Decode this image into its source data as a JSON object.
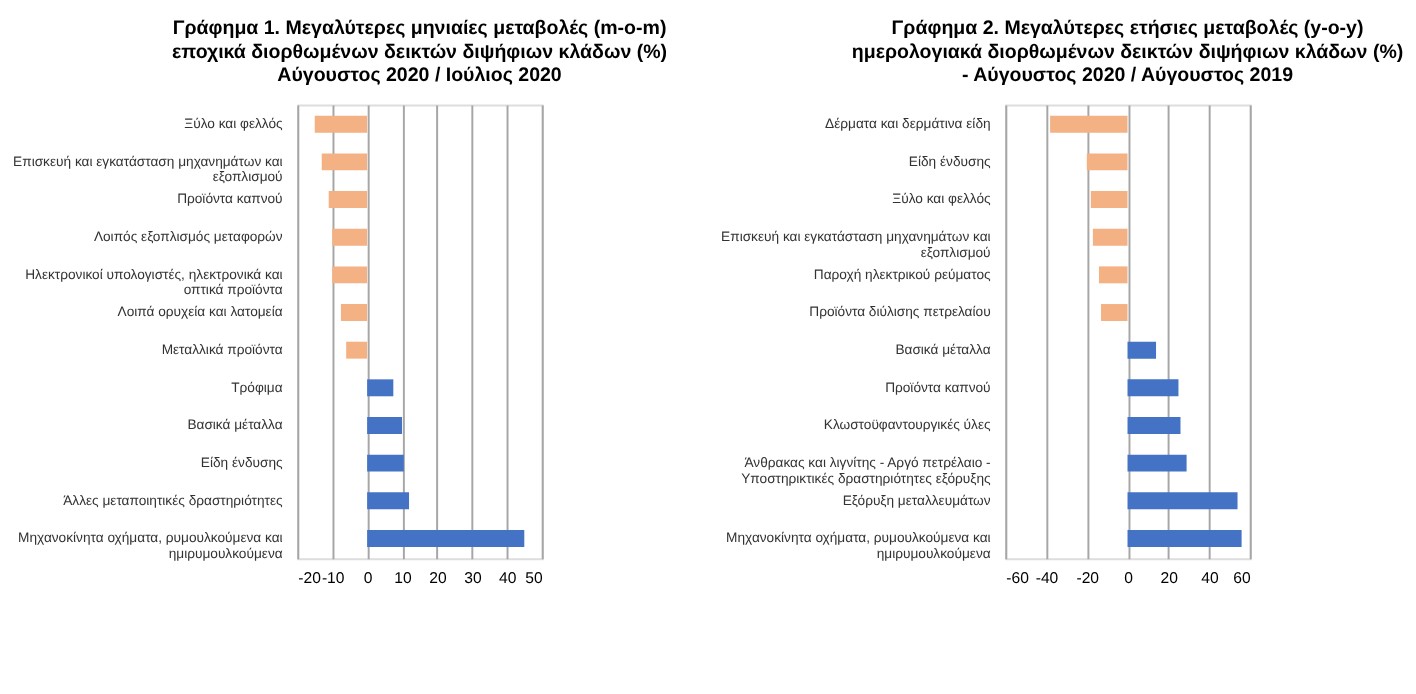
{
  "chart_data": [
    {
      "type": "bar",
      "orientation": "horizontal",
      "title": "Γράφημα 1. Μεγαλύτερες μηνιαίες μεταβολές (m-o-m) εποχικά διορθωμένων δεικτών διψήφιων κλάδων (%) Αύγουστος 2020 / Ιούλιος 2020",
      "categories": [
        "Ξύλο και φελλός",
        "Επισκευή και εγκατάσταση μηχανημάτων και εξοπλισμού",
        "Προϊόντα καπνού",
        "Λοιπός εξοπλισμός μεταφορών",
        "Ηλεκτρονικοί υπολογιστές, ηλεκτρονικά και οπτικά προϊόντα",
        "Λοιπά ορυχεία και λατομεία",
        "Μεταλλικά προϊόντα",
        "Τρόφιμα",
        "Βασικά μέταλλα",
        "Είδη ένδυσης",
        "Άλλες μεταποιητικές δραστηριότητες",
        "Μηχανοκίνητα οχήματα, ρυμουλκούμενα και ημιρυμουλκούμενα"
      ],
      "values": [
        -15,
        -13,
        -11,
        -10,
        -10,
        -7.5,
        -6,
        7.5,
        10,
        10.5,
        12,
        45
      ],
      "colors": [
        "#f4b183",
        "#f4b183",
        "#f4b183",
        "#f4b183",
        "#f4b183",
        "#f4b183",
        "#f4b183",
        "#4472c4",
        "#4472c4",
        "#4472c4",
        "#4472c4",
        "#4472c4"
      ],
      "xlim": [
        -20,
        50
      ],
      "xticks": [
        -20,
        -10,
        0,
        10,
        20,
        30,
        40,
        50
      ],
      "grid": "x"
    },
    {
      "type": "bar",
      "orientation": "horizontal",
      "title": "Γράφημα 2. Μεγαλύτερες ετήσιες μεταβολές (y-o-y) ημερολογιακά διορθωμένων δεικτών διψήφιων κλάδων (%) - Αύγουστος 2020 / Αύγουστος 2019",
      "categories": [
        "Δέρματα και δερμάτινα είδη",
        "Είδη ένδυσης",
        "Ξύλο και φελλός",
        "Επισκευή και εγκατάσταση μηχανημάτων και εξοπλισμού",
        "Παροχή ηλεκτρικού ρεύματος",
        "Προϊόντα διύλισης πετρελαίου",
        "Βασικά μέταλλα",
        "Προϊόντα καπνού",
        "Κλωστοϋφαντουργικές ύλες",
        "Άνθρακας και λιγνίτης - Αργό πετρέλαιο - Υποστηρικτικές δραστηριότητες εξόρυξης",
        "Εξόρυξη μεταλλευμάτων",
        "Μηχανοκίνητα οχήματα, ρυμουλκούμενα και ημιρυμουλκούμενα"
      ],
      "values": [
        -38,
        -20,
        -18,
        -17,
        -14,
        -13,
        14,
        25,
        26,
        29,
        54,
        56
      ],
      "colors": [
        "#f4b183",
        "#f4b183",
        "#f4b183",
        "#f4b183",
        "#f4b183",
        "#f4b183",
        "#4472c4",
        "#4472c4",
        "#4472c4",
        "#4472c4",
        "#4472c4",
        "#4472c4"
      ],
      "xlim": [
        -60,
        60
      ],
      "xticks": [
        -60,
        -40,
        -20,
        0,
        20,
        40,
        60
      ],
      "grid": "x"
    }
  ]
}
